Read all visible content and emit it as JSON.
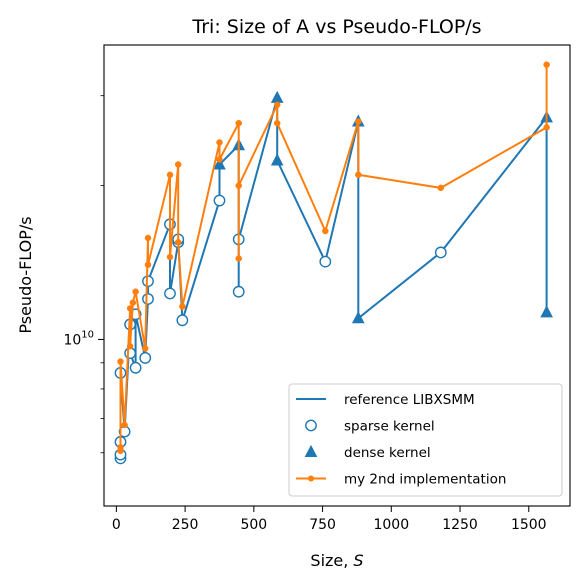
{
  "chart_data": {
    "type": "line",
    "title": "Tri: Size of A vs Pseudo-FLOP/s",
    "xlabel": "Size, S",
    "ylabel": "Pseudo-FLOP/s",
    "xlim": [
      -45,
      1650
    ],
    "ylim": [
      4720000000.0,
      37700000000.0
    ],
    "y_scale": "log",
    "x_ticks": [
      0,
      250,
      500,
      750,
      1000,
      1250,
      1500
    ],
    "y_major_ticks": [
      10000000000.0
    ],
    "y_major_tick_labels": [
      "10^10"
    ],
    "y_minor_ticks": [
      6000000000.0,
      7000000000.0,
      8000000000.0,
      9000000000.0,
      20000000000.0,
      30000000000.0
    ],
    "grid": false,
    "legend_position": "lower right",
    "legend": [
      {
        "label": "reference LIBXSMM",
        "marker": "line",
        "color": "#1f77b4"
      },
      {
        "label": "sparse kernel",
        "marker": "open-circle",
        "color": "#1f77b4"
      },
      {
        "label": "dense kernel",
        "marker": "triangle",
        "color": "#1f77b4"
      },
      {
        "label": "my 2nd implementation",
        "marker": "line-dot",
        "color": "#ff7f0e"
      }
    ],
    "series": [
      {
        "name": "reference LIBXSMM",
        "color": "#1f77b4",
        "points": [
          {
            "x": 15,
            "y": 5850000000.0,
            "kind": "sparse"
          },
          {
            "x": 15,
            "y": 5950000000.0,
            "kind": "sparse"
          },
          {
            "x": 15,
            "y": 6300000000.0,
            "kind": "sparse"
          },
          {
            "x": 15,
            "y": 8600000000.0,
            "kind": "sparse"
          },
          {
            "x": 30,
            "y": 6600000000.0,
            "kind": "sparse"
          },
          {
            "x": 50,
            "y": 10700000000.0,
            "kind": "sparse"
          },
          {
            "x": 50,
            "y": 9400000000.0,
            "kind": "sparse"
          },
          {
            "x": 70,
            "y": 8800000000.0,
            "kind": "sparse"
          },
          {
            "x": 70,
            "y": 11200000000.0,
            "kind": "sparse"
          },
          {
            "x": 105,
            "y": 9200000000.0,
            "kind": "sparse"
          },
          {
            "x": 115,
            "y": 12000000000.0,
            "kind": "sparse"
          },
          {
            "x": 115,
            "y": 13000000000.0,
            "kind": "sparse"
          },
          {
            "x": 195,
            "y": 16800000000.0,
            "kind": "sparse"
          },
          {
            "x": 195,
            "y": 12300000000.0,
            "kind": "sparse"
          },
          {
            "x": 225,
            "y": 15500000000.0,
            "kind": "sparse"
          },
          {
            "x": 225,
            "y": 15700000000.0,
            "kind": "sparse"
          },
          {
            "x": 240,
            "y": 10900000000.0,
            "kind": "sparse"
          },
          {
            "x": 375,
            "y": 18700000000.0,
            "kind": "sparse"
          },
          {
            "x": 375,
            "y": 22000000000.0,
            "kind": "triangle"
          },
          {
            "x": 445,
            "y": 24000000000.0,
            "kind": "triangle"
          },
          {
            "x": 445,
            "y": 12400000000.0,
            "kind": "sparse"
          },
          {
            "x": 445,
            "y": 15700000000.0,
            "kind": "sparse"
          },
          {
            "x": 585,
            "y": 29700000000.0,
            "kind": "triangle"
          },
          {
            "x": 585,
            "y": 22400000000.0,
            "kind": "triangle"
          },
          {
            "x": 760,
            "y": 14200000000.0,
            "kind": "sparse"
          },
          {
            "x": 880,
            "y": 26700000000.0,
            "kind": "triangle"
          },
          {
            "x": 880,
            "y": 11000000000.0,
            "kind": "triangle"
          },
          {
            "x": 1180,
            "y": 14800000000.0,
            "kind": "sparse"
          },
          {
            "x": 1565,
            "y": 27200000000.0,
            "kind": "triangle"
          },
          {
            "x": 1565,
            "y": 11300000000.0,
            "kind": "triangle"
          }
        ]
      },
      {
        "name": "my 2nd implementation",
        "color": "#ff7f0e",
        "points": [
          {
            "x": 15,
            "y": 6050000000.0
          },
          {
            "x": 15,
            "y": 6150000000.0
          },
          {
            "x": 15,
            "y": 9050000000.0
          },
          {
            "x": 30,
            "y": 6800000000.0
          },
          {
            "x": 50,
            "y": 11500000000.0
          },
          {
            "x": 50,
            "y": 9700000000.0
          },
          {
            "x": 60,
            "y": 11800000000.0
          },
          {
            "x": 70,
            "y": 12400000000.0
          },
          {
            "x": 105,
            "y": 9600000000.0
          },
          {
            "x": 115,
            "y": 15800000000.0
          },
          {
            "x": 115,
            "y": 14000000000.0
          },
          {
            "x": 195,
            "y": 21000000000.0
          },
          {
            "x": 195,
            "y": 14500000000.0
          },
          {
            "x": 225,
            "y": 22000000000.0
          },
          {
            "x": 225,
            "y": 15500000000.0
          },
          {
            "x": 240,
            "y": 11600000000.0
          },
          {
            "x": 375,
            "y": 24300000000.0
          },
          {
            "x": 375,
            "y": 22500000000.0
          },
          {
            "x": 445,
            "y": 26500000000.0
          },
          {
            "x": 445,
            "y": 14400000000.0
          },
          {
            "x": 445,
            "y": 20000000000.0
          },
          {
            "x": 585,
            "y": 28800000000.0
          },
          {
            "x": 585,
            "y": 26500000000.0
          },
          {
            "x": 760,
            "y": 16300000000.0
          },
          {
            "x": 880,
            "y": 26700000000.0
          },
          {
            "x": 880,
            "y": 21000000000.0
          },
          {
            "x": 1180,
            "y": 19800000000.0
          },
          {
            "x": 1565,
            "y": 26000000000.0
          },
          {
            "x": 1565,
            "y": 34500000000.0
          }
        ]
      }
    ]
  }
}
